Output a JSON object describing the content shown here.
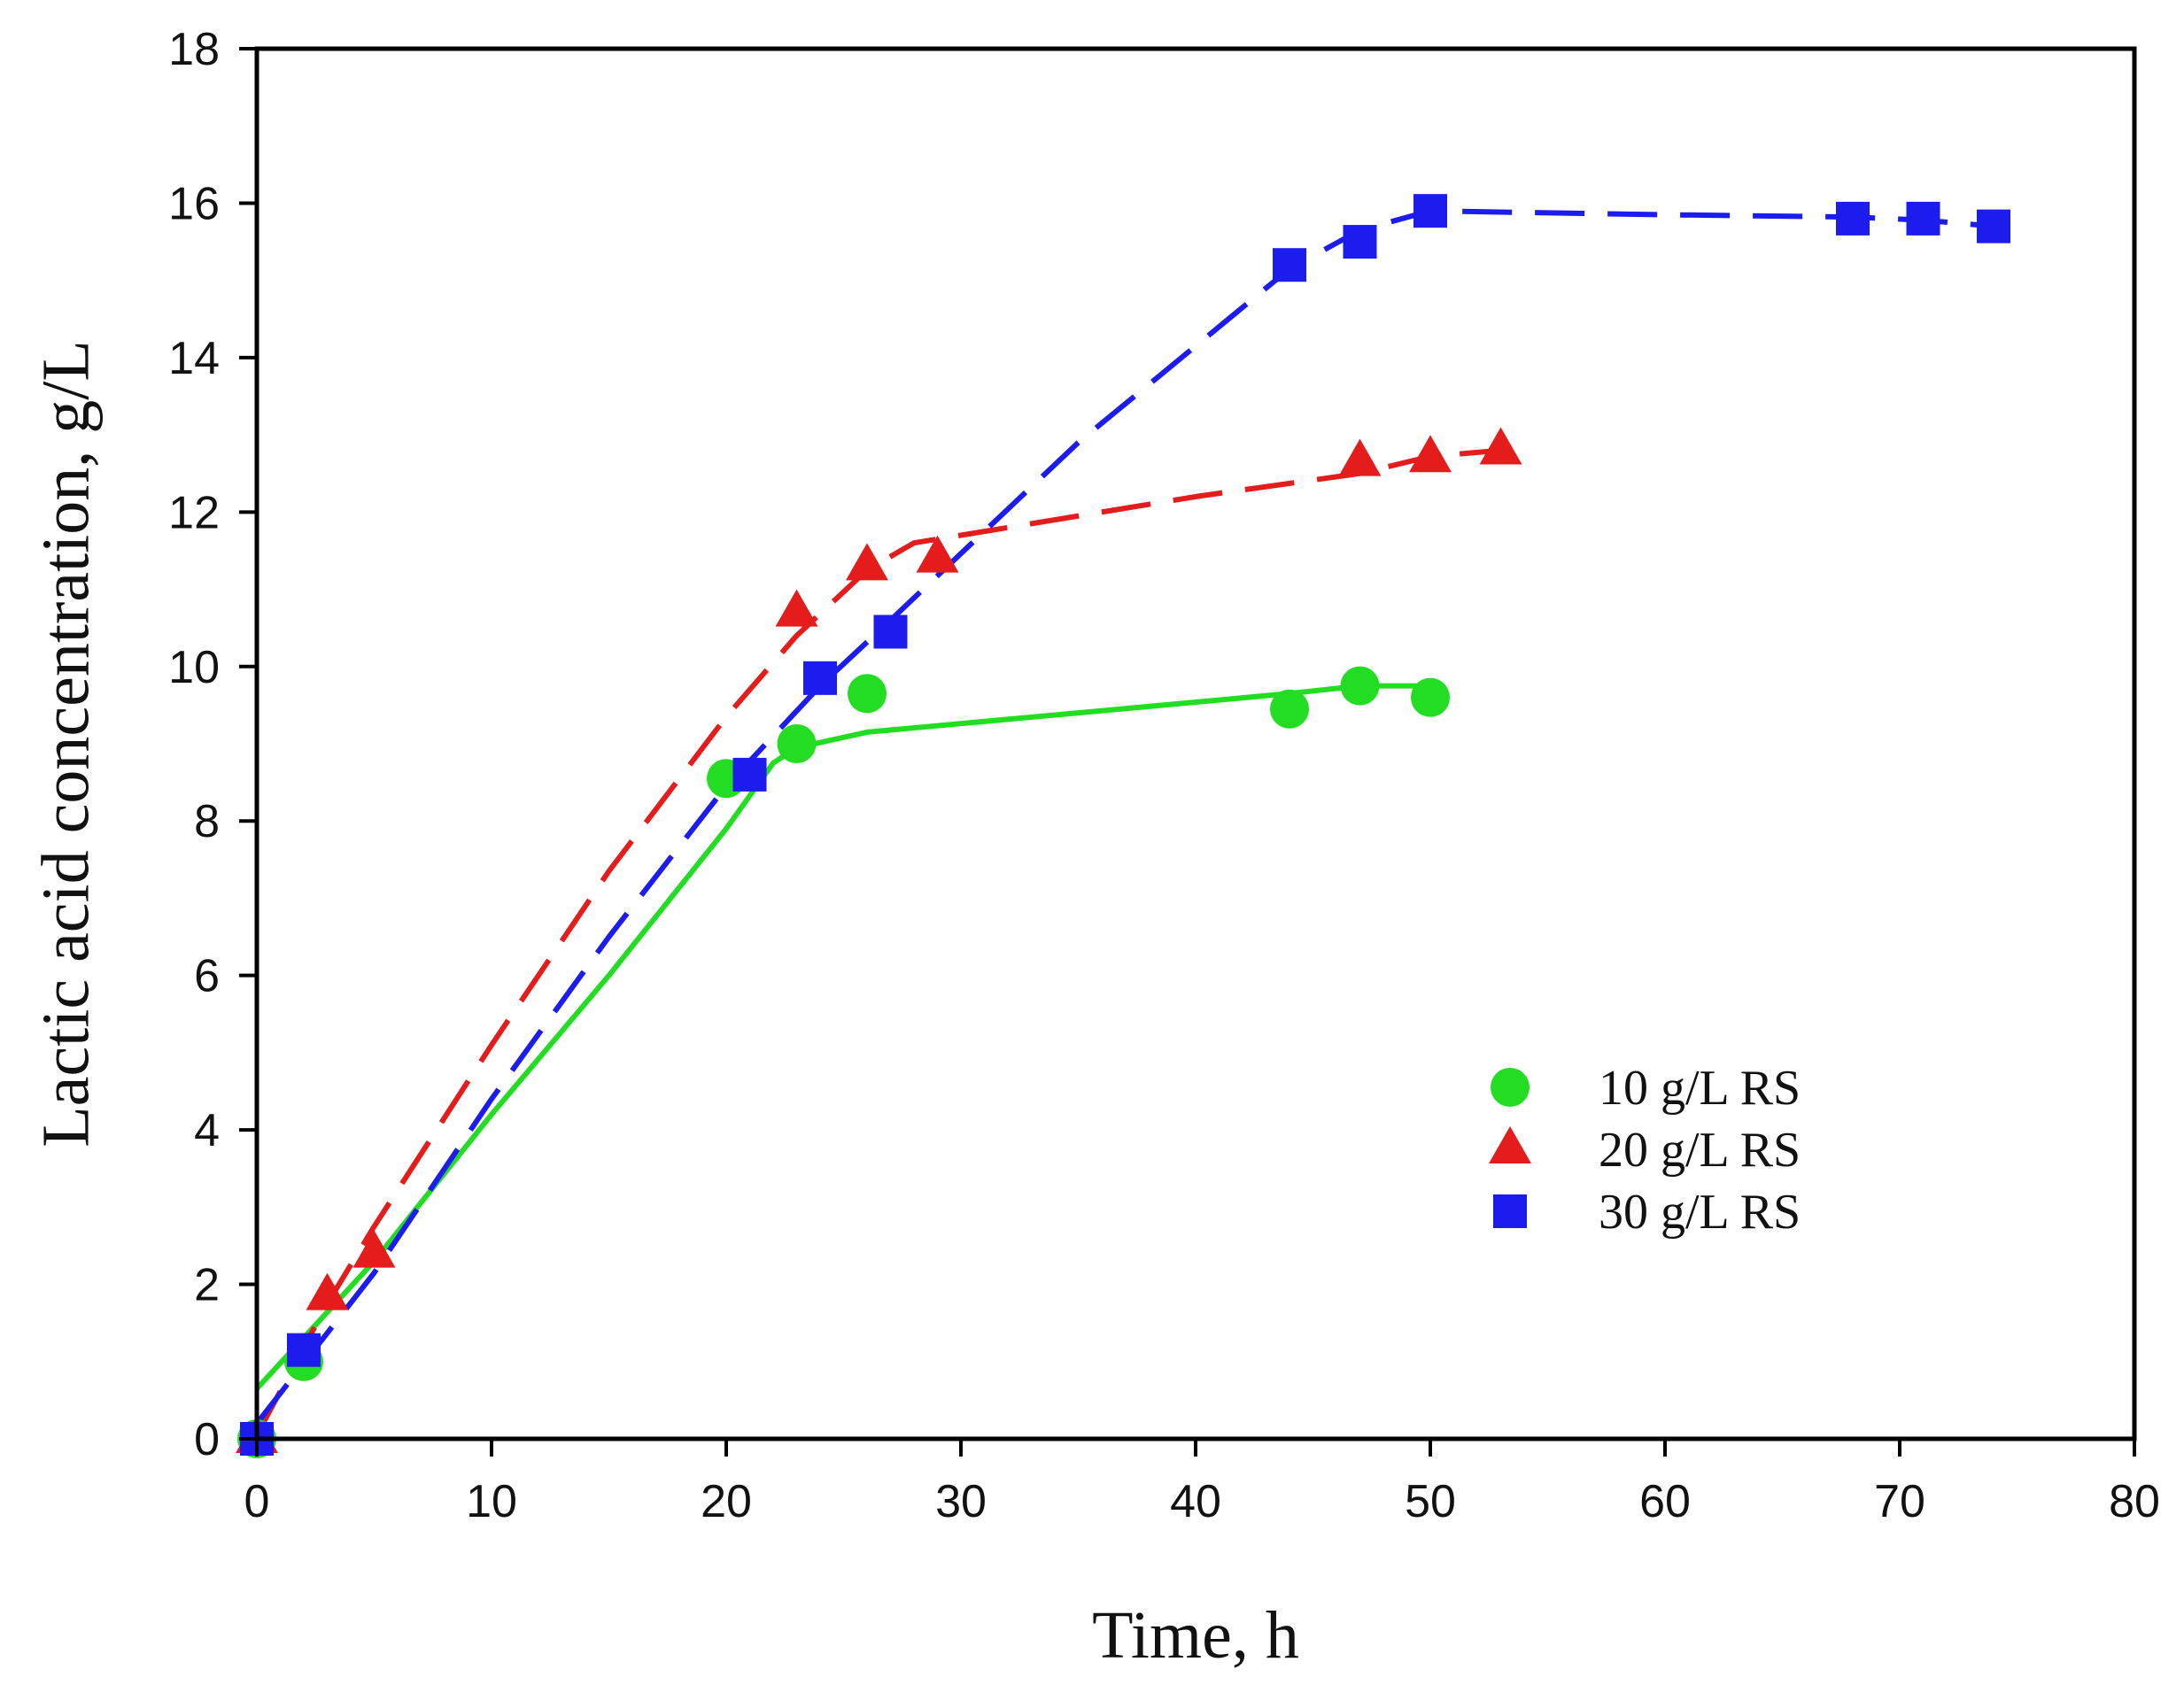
{
  "chart_data": {
    "type": "scatter",
    "xlabel": "Time, h",
    "ylabel": "Lactic acid concentration, g/L",
    "xlim": [
      0,
      80
    ],
    "ylim": [
      0,
      18
    ],
    "xticks": [
      "0",
      "10",
      "20",
      "30",
      "40",
      "50",
      "60",
      "70",
      "80"
    ],
    "yticks": [
      "0",
      "2",
      "4",
      "6",
      "8",
      "10",
      "12",
      "14",
      "16",
      "18"
    ],
    "grid": false,
    "legend_position": "right-center",
    "series": [
      {
        "name": "10 g/L RS",
        "marker": "circle",
        "color": "#22dd22",
        "line_style": "solid",
        "points": [
          [
            0,
            0
          ],
          [
            2,
            1.0
          ],
          [
            20,
            8.55
          ],
          [
            23,
            9.0
          ],
          [
            26,
            9.65
          ],
          [
            44,
            9.45
          ],
          [
            47,
            9.75
          ],
          [
            50,
            9.6
          ]
        ],
        "fit": [
          [
            0,
            0.65
          ],
          [
            5,
            2.3
          ],
          [
            10,
            4.2
          ],
          [
            15,
            6.0
          ],
          [
            20,
            7.9
          ],
          [
            22,
            8.75
          ],
          [
            23,
            8.95
          ],
          [
            26,
            9.15
          ],
          [
            35,
            9.4
          ],
          [
            44,
            9.65
          ],
          [
            47,
            9.75
          ],
          [
            50,
            9.75
          ]
        ]
      },
      {
        "name": "20 g/L RS",
        "marker": "triangle",
        "color": "#e51c1c",
        "line_style": "dashed",
        "points": [
          [
            0,
            0
          ],
          [
            3,
            1.85
          ],
          [
            5,
            2.4
          ],
          [
            23,
            10.7
          ],
          [
            26,
            11.3
          ],
          [
            29,
            11.4
          ],
          [
            47,
            12.65
          ],
          [
            50,
            12.7
          ],
          [
            53,
            12.8
          ]
        ],
        "fit": [
          [
            0,
            0.05
          ],
          [
            3,
            1.75
          ],
          [
            5,
            2.75
          ],
          [
            10,
            5.1
          ],
          [
            15,
            7.35
          ],
          [
            20,
            9.35
          ],
          [
            23,
            10.4
          ],
          [
            26,
            11.25
          ],
          [
            28,
            11.6
          ],
          [
            32,
            11.8
          ],
          [
            40,
            12.2
          ],
          [
            47,
            12.5
          ],
          [
            50,
            12.72
          ],
          [
            53,
            12.8
          ]
        ]
      },
      {
        "name": "30 g/L RS",
        "marker": "square",
        "color": "#1c1cee",
        "line_style": "dashed",
        "points": [
          [
            0,
            0
          ],
          [
            2,
            1.15
          ],
          [
            21,
            8.6
          ],
          [
            24,
            9.85
          ],
          [
            27,
            10.45
          ],
          [
            44,
            15.2
          ],
          [
            47,
            15.5
          ],
          [
            50,
            15.9
          ],
          [
            68,
            15.8
          ],
          [
            71,
            15.8
          ],
          [
            74,
            15.7
          ]
        ],
        "fit": [
          [
            0,
            0.2
          ],
          [
            5,
            2.15
          ],
          [
            10,
            4.4
          ],
          [
            15,
            6.5
          ],
          [
            20,
            8.45
          ],
          [
            24,
            9.75
          ],
          [
            27,
            10.6
          ],
          [
            35,
            12.9
          ],
          [
            44,
            15.15
          ],
          [
            47,
            15.65
          ],
          [
            50,
            15.9
          ],
          [
            60,
            15.85
          ],
          [
            68,
            15.82
          ],
          [
            71,
            15.78
          ],
          [
            74,
            15.7
          ]
        ]
      }
    ]
  }
}
